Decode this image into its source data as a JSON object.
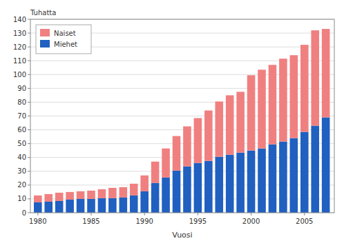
{
  "chart_data": {
    "type": "bar",
    "stacked": true,
    "x": [
      1980,
      1981,
      1982,
      1983,
      1984,
      1985,
      1986,
      1987,
      1988,
      1989,
      1990,
      1991,
      1992,
      1993,
      1994,
      1995,
      1996,
      1997,
      1998,
      1999,
      2000,
      2001,
      2002,
      2003,
      2004,
      2005,
      2006,
      2007
    ],
    "series": [
      {
        "name": "Miehet",
        "color": "#2060c0",
        "values": [
          7.5,
          8.0,
          8.5,
          9.5,
          10.0,
          10.0,
          10.5,
          10.5,
          11.0,
          12.5,
          15.5,
          21.5,
          25.5,
          30.5,
          33.5,
          36.0,
          37.5,
          40.5,
          42.0,
          43.5,
          45.0,
          46.5,
          49.5,
          51.5,
          54.0,
          58.5,
          63.0,
          69.0
        ]
      },
      {
        "name": "Naiset",
        "color": "#f08080",
        "values": [
          5.0,
          5.5,
          6.0,
          5.5,
          5.5,
          6.0,
          6.5,
          7.5,
          7.5,
          8.5,
          11.5,
          15.5,
          21.0,
          25.0,
          29.0,
          32.5,
          36.5,
          40.0,
          43.0,
          44.0,
          54.5,
          57.0,
          57.5,
          60.0,
          60.0,
          63.0,
          69.0,
          64.0
        ]
      }
    ],
    "xlabel": "Vuosi",
    "ylabel": "Tuhatta",
    "xlim": [
      1979.3,
      2007.8
    ],
    "xticks": [
      1980,
      1985,
      1990,
      1995,
      2000,
      2005
    ],
    "ylim": [
      0,
      140
    ],
    "yticks": [
      0,
      10,
      20,
      30,
      40,
      50,
      60,
      70,
      80,
      90,
      100,
      110,
      120,
      130,
      140
    ],
    "grid": true,
    "legend": "upper left"
  }
}
